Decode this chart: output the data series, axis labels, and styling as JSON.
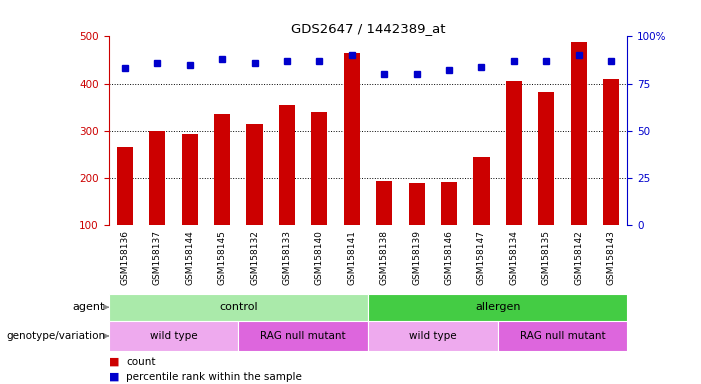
{
  "title": "GDS2647 / 1442389_at",
  "samples": [
    "GSM158136",
    "GSM158137",
    "GSM158144",
    "GSM158145",
    "GSM158132",
    "GSM158133",
    "GSM158140",
    "GSM158141",
    "GSM158138",
    "GSM158139",
    "GSM158146",
    "GSM158147",
    "GSM158134",
    "GSM158135",
    "GSM158142",
    "GSM158143"
  ],
  "counts": [
    265,
    300,
    292,
    335,
    315,
    355,
    340,
    465,
    193,
    188,
    190,
    243,
    405,
    383,
    488,
    410
  ],
  "percentile_ranks": [
    83,
    86,
    85,
    88,
    86,
    87,
    87,
    90,
    80,
    80,
    82,
    84,
    87,
    87,
    90,
    87
  ],
  "ylim_left": [
    100,
    500
  ],
  "ylim_right": [
    0,
    100
  ],
  "yticks_left": [
    100,
    200,
    300,
    400,
    500
  ],
  "yticks_right": [
    0,
    25,
    50,
    75,
    100
  ],
  "ytick_labels_right": [
    "0",
    "25",
    "50",
    "75",
    "100%"
  ],
  "grid_lines": [
    200,
    300,
    400
  ],
  "bar_color": "#cc0000",
  "dot_color": "#0000cc",
  "agent_groups": [
    {
      "label": "control",
      "start": 0,
      "end": 8,
      "color": "#aaeaaa"
    },
    {
      "label": "allergen",
      "start": 8,
      "end": 16,
      "color": "#44cc44"
    }
  ],
  "genotype_groups": [
    {
      "label": "wild type",
      "start": 0,
      "end": 4,
      "color": "#eeaaee"
    },
    {
      "label": "RAG null mutant",
      "start": 4,
      "end": 8,
      "color": "#dd66dd"
    },
    {
      "label": "wild type",
      "start": 8,
      "end": 12,
      "color": "#eeaaee"
    },
    {
      "label": "RAG null mutant",
      "start": 12,
      "end": 16,
      "color": "#dd66dd"
    }
  ],
  "legend_count_color": "#cc0000",
  "legend_dot_color": "#0000cc",
  "row_label_agent": "agent",
  "row_label_genotype": "genotype/variation",
  "left_color": "#cc0000",
  "right_color": "#0000cc",
  "bar_width": 0.5,
  "tick_bg": "#d8d8d8"
}
